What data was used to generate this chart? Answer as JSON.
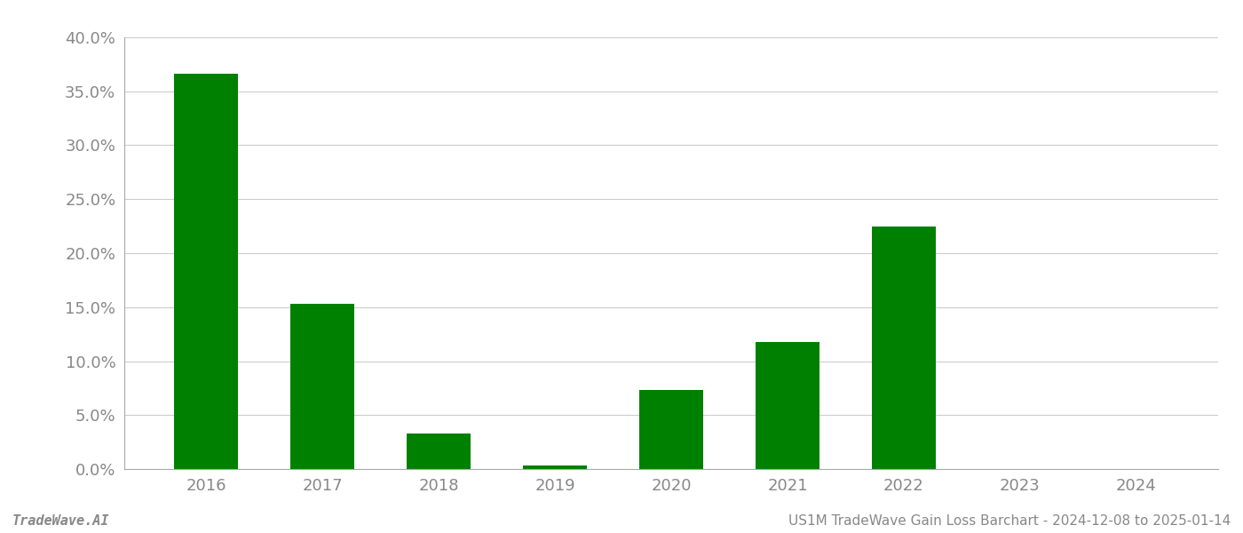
{
  "categories": [
    "2016",
    "2017",
    "2018",
    "2019",
    "2020",
    "2021",
    "2022",
    "2023",
    "2024"
  ],
  "values": [
    0.366,
    0.153,
    0.033,
    0.003,
    0.073,
    0.118,
    0.225,
    0.0,
    0.0
  ],
  "bar_color": "#008000",
  "background_color": "#ffffff",
  "grid_color": "#cccccc",
  "axis_color": "#aaaaaa",
  "tick_label_color": "#888888",
  "ylim": [
    0,
    0.4
  ],
  "ytick_step": 0.05,
  "footer_left": "TradeWave.AI",
  "footer_right": "US1M TradeWave Gain Loss Barchart - 2024-12-08 to 2025-01-14",
  "footer_fontsize": 11,
  "tick_fontsize": 13,
  "bar_width": 0.55
}
